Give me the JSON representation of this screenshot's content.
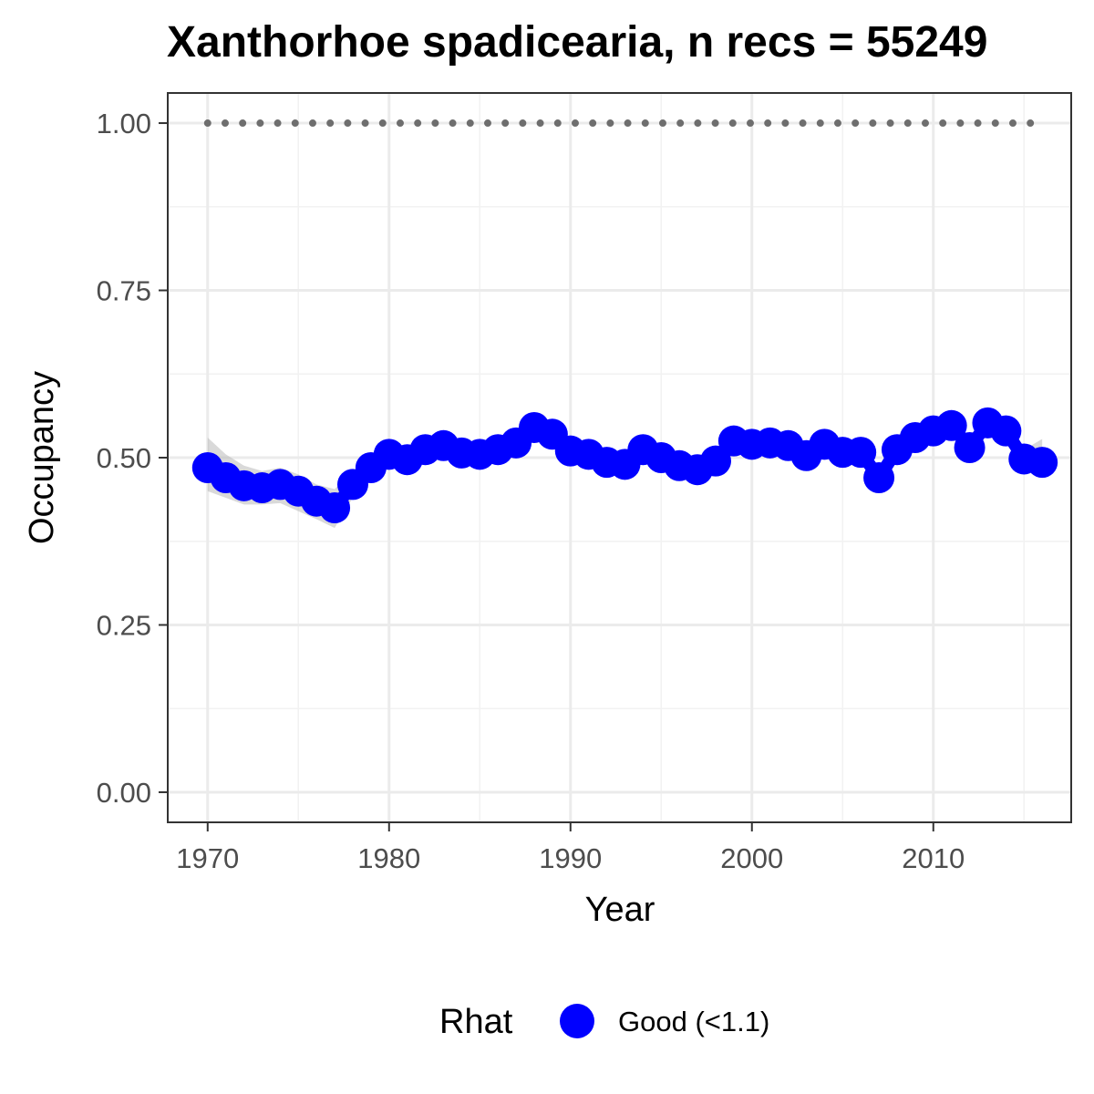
{
  "chart_data": {
    "type": "line",
    "title": "Xanthorhoe spadicearia, n recs = 55249",
    "xlabel": "Year",
    "ylabel": "Occupancy",
    "xlim": [
      1967.8,
      2017.6
    ],
    "ylim": [
      -0.045,
      1.045
    ],
    "x_ticks": [
      1970,
      1980,
      1990,
      2000,
      2010
    ],
    "y_ticks": [
      0.0,
      0.25,
      0.5,
      0.75,
      1.0
    ],
    "x_tick_labels": [
      "1970",
      "1980",
      "1990",
      "2000",
      "2010"
    ],
    "y_tick_labels": [
      "0.00",
      "0.25",
      "0.50",
      "0.75",
      "1.00"
    ],
    "grid": true,
    "legend": {
      "title": "Rhat",
      "position": "bottom",
      "entries": [
        {
          "label": "Good (<1.1)",
          "color": "#0000ff"
        }
      ]
    },
    "series": [
      {
        "name": "Good (<1.1)",
        "color": "#0000ff",
        "x": [
          1970,
          1971,
          1972,
          1973,
          1974,
          1975,
          1976,
          1977,
          1978,
          1979,
          1980,
          1981,
          1982,
          1983,
          1984,
          1985,
          1986,
          1987,
          1988,
          1989,
          1990,
          1991,
          1992,
          1993,
          1994,
          1995,
          1996,
          1997,
          1998,
          1999,
          2000,
          2001,
          2002,
          2003,
          2004,
          2005,
          2006,
          2007,
          2008,
          2009,
          2010,
          2011,
          2012,
          2013,
          2014,
          2015,
          2016
        ],
        "y": [
          0.485,
          0.47,
          0.458,
          0.455,
          0.46,
          0.45,
          0.435,
          0.425,
          0.46,
          0.485,
          0.505,
          0.497,
          0.512,
          0.518,
          0.507,
          0.505,
          0.512,
          0.522,
          0.545,
          0.535,
          0.51,
          0.505,
          0.493,
          0.49,
          0.512,
          0.5,
          0.488,
          0.482,
          0.495,
          0.525,
          0.52,
          0.522,
          0.518,
          0.503,
          0.52,
          0.508,
          0.508,
          0.47,
          0.512,
          0.53,
          0.54,
          0.548,
          0.515,
          0.552,
          0.54,
          0.498,
          0.493
        ],
        "ci_lower": [
          0.45,
          0.44,
          0.43,
          0.43,
          0.432,
          0.42,
          0.408,
          0.395,
          0.44,
          0.468,
          0.49,
          0.485,
          0.5,
          0.505,
          0.495,
          0.493,
          0.5,
          0.51,
          0.532,
          0.522,
          0.498,
          0.493,
          0.48,
          0.477,
          0.5,
          0.488,
          0.476,
          0.47,
          0.482,
          0.512,
          0.507,
          0.51,
          0.505,
          0.49,
          0.507,
          0.495,
          0.495,
          0.458,
          0.5,
          0.518,
          0.528,
          0.535,
          0.503,
          0.54,
          0.527,
          0.485,
          0.47
        ],
        "ci_upper": [
          0.53,
          0.505,
          0.488,
          0.48,
          0.485,
          0.475,
          0.46,
          0.453,
          0.48,
          0.502,
          0.52,
          0.51,
          0.525,
          0.53,
          0.52,
          0.518,
          0.525,
          0.535,
          0.558,
          0.548,
          0.522,
          0.518,
          0.506,
          0.503,
          0.525,
          0.513,
          0.5,
          0.495,
          0.508,
          0.538,
          0.533,
          0.535,
          0.531,
          0.516,
          0.533,
          0.521,
          0.521,
          0.483,
          0.525,
          0.543,
          0.553,
          0.561,
          0.528,
          0.565,
          0.553,
          0.512,
          0.528
        ]
      },
      {
        "name": "",
        "color": "#6e6e6e",
        "style": "dotted",
        "x": [
          1970,
          2016
        ],
        "y": [
          1.0,
          1.0
        ]
      }
    ]
  }
}
